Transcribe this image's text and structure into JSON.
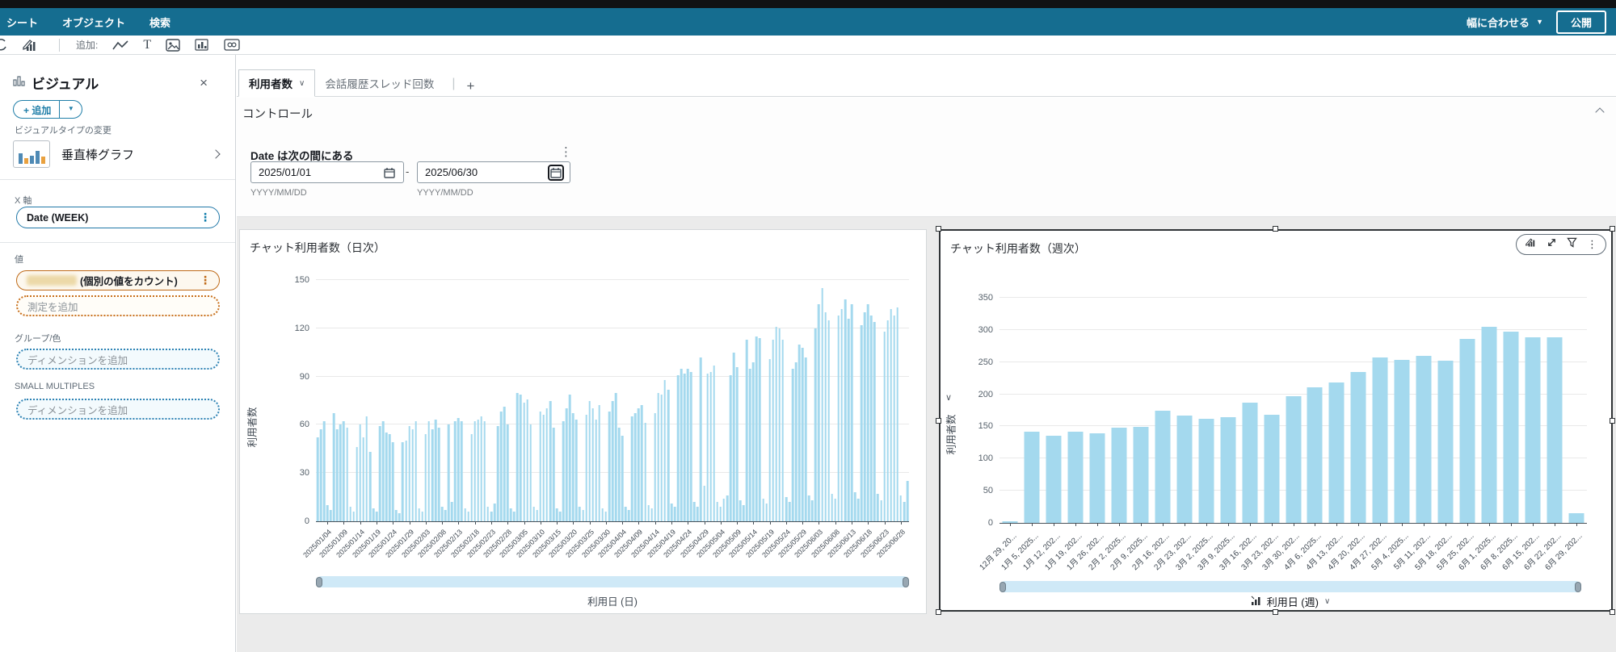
{
  "topbar": {
    "menu": [
      "シート",
      "オブジェクト",
      "検索"
    ],
    "fit_width_label": "幅に合わせる",
    "publish_label": "公開"
  },
  "toolbar": {
    "add_label": "追加:",
    "text_tool_glyph": "T"
  },
  "glyphs": {
    "close": "×",
    "caret_down": "▼",
    "chevron_down": "∨",
    "kebab": "⋮",
    "plus": "+",
    "tab_divider": "|",
    "range_separator": "-"
  },
  "sidebar": {
    "title": "ビジュアル",
    "add_button_label": "追加",
    "visual_type_section_label": "ビジュアルタイプの変更",
    "visual_type": "垂直棒グラフ",
    "x_axis_label": "X 軸",
    "x_axis_field": "Date (WEEK)",
    "value_label": "値",
    "value_field_suffix": "(個別の値をカウント)",
    "add_measure_placeholder": "測定を追加",
    "group_color_label": "グループ/色",
    "add_dimension_placeholder": "ディメンションを追加",
    "small_multiples_label": "SMALL MULTIPLES",
    "small_multiples_placeholder": "ディメンションを追加"
  },
  "tabs": {
    "active": "利用者数",
    "inactive": "会話履歴スレッド回数"
  },
  "controls": {
    "section_title": "コントロール",
    "filter_label": "Date は次の間にある",
    "date_from": "2025/01/01",
    "date_to": "2025/06/30",
    "date_hint": "YYYY/MM/DD"
  },
  "colors": {
    "header_teal": "#156d90",
    "accent_blue": "#0f7cab",
    "accent_orange": "#bf6a18",
    "bar_fill": "#a4d9ee",
    "canvas_gray": "#ebebeb"
  },
  "chart_data": [
    {
      "type": "bar",
      "title": "チャット利用者数（日次）",
      "ylabel": "利用者数",
      "xlabel": "利用日 (日)",
      "ylim": [
        0,
        150
      ],
      "yticks": [
        0,
        30,
        60,
        90,
        120,
        150
      ],
      "grid": true,
      "legend": "none",
      "bar_color": "#a4d9ee",
      "x_start": "2025/01/01",
      "x_end": "2025/06/30",
      "x_granularity": "daily",
      "x_tick_indices": [
        3,
        8,
        13,
        18,
        23,
        28,
        33,
        38,
        43,
        48,
        53,
        58,
        63,
        68,
        73,
        78,
        83,
        88,
        93,
        98,
        103,
        108,
        113,
        118,
        123,
        128,
        133,
        138,
        143,
        148,
        153,
        158,
        163,
        168,
        173,
        178
      ],
      "x_tick_labels": [
        "2025/01/04",
        "2025/01/09",
        "2025/01/14",
        "2025/01/19",
        "2025/01/24",
        "2025/01/29",
        "2025/02/03",
        "2025/02/08",
        "2025/02/13",
        "2025/02/18",
        "2025/02/23",
        "2025/02/28",
        "2025/03/05",
        "2025/03/10",
        "2025/03/15",
        "2025/03/20",
        "2025/03/25",
        "2025/03/30",
        "2025/04/04",
        "2025/04/09",
        "2025/04/14",
        "2025/04/19",
        "2025/04/24",
        "2025/04/29",
        "2025/05/04",
        "2025/05/09",
        "2025/05/14",
        "2025/05/19",
        "2025/05/24",
        "2025/05/29",
        "2025/06/03",
        "2025/06/08",
        "2025/06/13",
        "2025/06/18",
        "2025/06/23",
        "2025/06/28"
      ],
      "values": [
        52,
        57,
        62,
        10,
        7,
        67,
        57,
        60,
        62,
        58,
        9,
        6,
        46,
        60,
        52,
        65,
        43,
        8,
        6,
        59,
        62,
        55,
        54,
        49,
        7,
        5,
        49,
        50,
        59,
        57,
        62,
        8,
        6,
        54,
        62,
        57,
        63,
        58,
        9,
        7,
        60,
        12,
        62,
        64,
        62,
        8,
        6,
        54,
        62,
        63,
        65,
        62,
        9,
        6,
        11,
        59,
        68,
        71,
        60,
        8,
        6,
        80,
        79,
        74,
        76,
        60,
        9,
        7,
        68,
        66,
        70,
        75,
        58,
        8,
        6,
        62,
        70,
        79,
        67,
        63,
        9,
        7,
        66,
        75,
        70,
        63,
        72,
        8,
        6,
        68,
        75,
        80,
        58,
        53,
        9,
        7,
        65,
        67,
        70,
        72,
        61,
        10,
        8,
        67,
        80,
        79,
        88,
        82,
        11,
        9,
        91,
        95,
        92,
        95,
        93,
        12,
        9,
        102,
        22,
        92,
        93,
        97,
        12,
        9,
        14,
        16,
        91,
        105,
        96,
        13,
        10,
        113,
        95,
        99,
        115,
        114,
        14,
        11,
        101,
        113,
        121,
        120,
        113,
        15,
        12,
        95,
        99,
        110,
        108,
        102,
        16,
        13,
        120,
        135,
        145,
        130,
        125,
        17,
        14,
        128,
        132,
        138,
        126,
        135,
        18,
        14,
        122,
        130,
        135,
        128,
        124,
        17,
        13,
        118,
        125,
        132,
        128,
        133,
        16,
        12,
        25
      ]
    },
    {
      "type": "bar",
      "title": "チャット利用者数（週次）",
      "ylabel": "利用者数",
      "xlabel": "利用日 (週)",
      "ylim": [
        0,
        350
      ],
      "yticks": [
        0,
        50,
        100,
        150,
        200,
        250,
        300,
        350
      ],
      "grid": true,
      "legend": "none",
      "bar_color": "#a4d9ee",
      "categories": [
        "12月 29, 20...",
        "1月 5, 2025...",
        "1月 12, 202...",
        "1月 19, 202...",
        "1月 26, 202...",
        "2月 2, 2025...",
        "2月 9, 2025...",
        "2月 16, 202...",
        "2月 23, 202...",
        "3月 2, 2025...",
        "3月 9, 2025...",
        "3月 16, 202...",
        "3月 23, 202...",
        "3月 30, 202...",
        "4月 6, 2025...",
        "4月 13, 202...",
        "4月 20, 202...",
        "4月 27, 202...",
        "5月 4, 2025...",
        "5月 11, 202...",
        "5月 18, 202...",
        "5月 25, 202...",
        "6月 1, 2025...",
        "6月 8, 2025...",
        "6月 15, 202...",
        "6月 22, 202...",
        "6月 29, 202..."
      ],
      "values": [
        3,
        142,
        135,
        142,
        139,
        148,
        149,
        175,
        167,
        162,
        164,
        187,
        168,
        197,
        211,
        218,
        235,
        257,
        253,
        260,
        252,
        286,
        305,
        297,
        288,
        289,
        15
      ]
    }
  ]
}
